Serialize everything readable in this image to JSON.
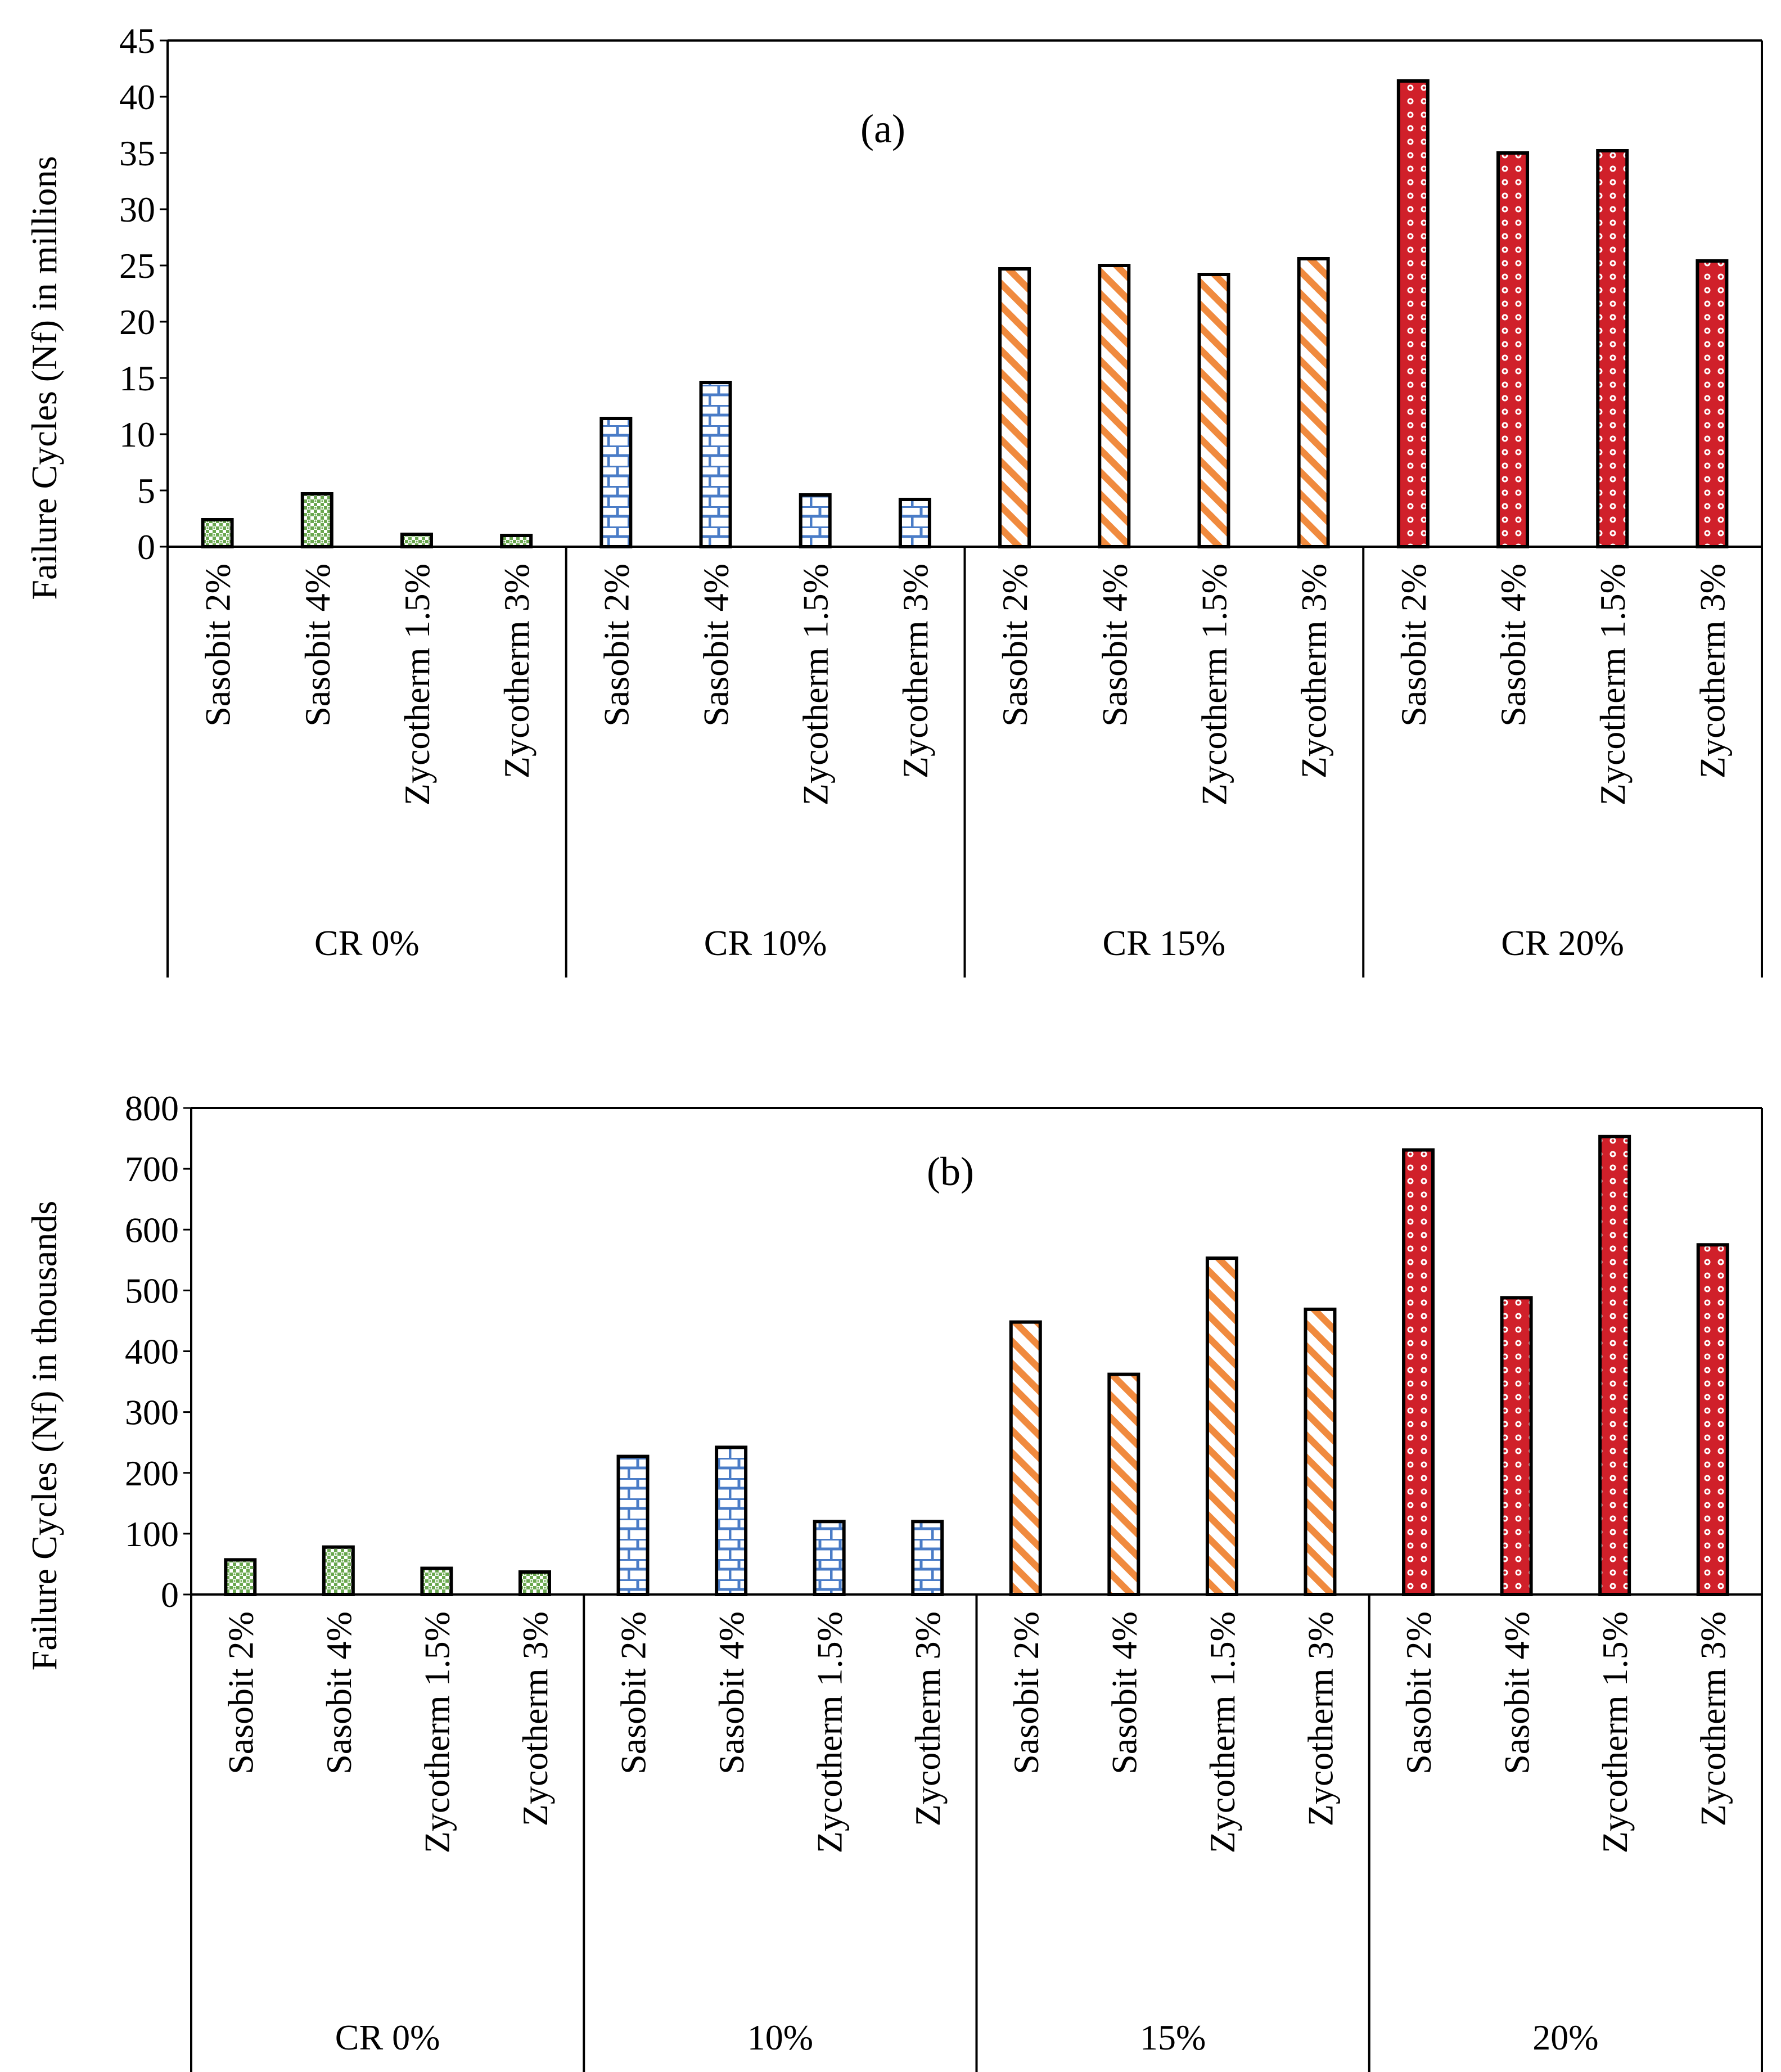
{
  "chart_data": [
    {
      "type": "bar",
      "panel_label": "(a)",
      "ylabel": "Failure Cycles (Nf) in millions",
      "ylim": [
        0,
        45
      ],
      "yticks": [
        0,
        5,
        10,
        15,
        20,
        25,
        30,
        35,
        40,
        45
      ],
      "groups": [
        {
          "label": "CR 0%",
          "pattern": "green-checker",
          "categories": [
            "Sasobit 2%",
            "Sasobit 4%",
            "Zycotherm 1.5%",
            "Zycotherm 3%"
          ],
          "values": [
            2.4,
            4.7,
            1.1,
            1.0
          ]
        },
        {
          "label": "CR 10%",
          "pattern": "blue-brick",
          "categories": [
            "Sasobit 2%",
            "Sasobit 4%",
            "Zycotherm 1.5%",
            "Zycotherm 3%"
          ],
          "values": [
            11.4,
            14.6,
            4.6,
            4.2
          ]
        },
        {
          "label": "CR 15%",
          "pattern": "orange-diagonal",
          "categories": [
            "Sasobit 2%",
            "Sasobit 4%",
            "Zycotherm 1.5%",
            "Zycotherm 3%"
          ],
          "values": [
            24.7,
            25.0,
            24.2,
            25.6
          ]
        },
        {
          "label": "CR 20%",
          "pattern": "red-dots",
          "categories": [
            "Sasobit 2%",
            "Sasobit 4%",
            "Zycotherm 1.5%",
            "Zycotherm 3%"
          ],
          "values": [
            41.4,
            35.0,
            35.2,
            25.4
          ]
        }
      ]
    },
    {
      "type": "bar",
      "panel_label": "(b)",
      "ylabel": "Failure Cycles (Nf) in thousands",
      "ylim": [
        0,
        800
      ],
      "yticks": [
        0,
        100,
        200,
        300,
        400,
        500,
        600,
        700,
        800
      ],
      "groups": [
        {
          "label": "CR 0%",
          "pattern": "green-checker",
          "categories": [
            "Sasobit 2%",
            "Sasobit 4%",
            "Zycotherm 1.5%",
            "Zycotherm 3%"
          ],
          "values": [
            57,
            78,
            43,
            37
          ]
        },
        {
          "label": "10%",
          "pattern": "blue-brick",
          "categories": [
            "Sasobit 2%",
            "Sasobit 4%",
            "Zycotherm 1.5%",
            "Zycotherm 3%"
          ],
          "values": [
            227,
            242,
            120,
            120
          ]
        },
        {
          "label": "15%",
          "pattern": "orange-diagonal",
          "categories": [
            "Sasobit 2%",
            "Sasobit 4%",
            "Zycotherm 1.5%",
            "Zycotherm 3%"
          ],
          "values": [
            448,
            362,
            553,
            469
          ]
        },
        {
          "label": "20%",
          "pattern": "red-dots",
          "categories": [
            "Sasobit 2%",
            "Sasobit 4%",
            "Zycotherm 1.5%",
            "Zycotherm 3%"
          ],
          "values": [
            731,
            488,
            753,
            575
          ]
        }
      ]
    }
  ],
  "colors": {
    "green": "#6aa84f",
    "blue": "#4a7cc7",
    "orange": "#f08a3e",
    "red": "#d0202a",
    "axis": "#000000"
  }
}
